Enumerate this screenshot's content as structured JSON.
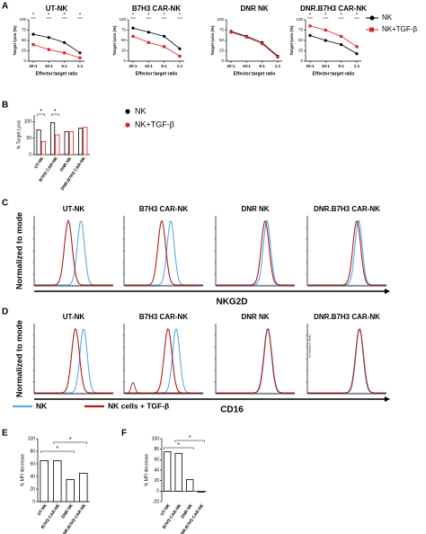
{
  "panel_labels": [
    "A",
    "B",
    "C",
    "D",
    "E",
    "F"
  ],
  "chart_data": [
    {
      "type": "line",
      "title": "UT-NK",
      "x_label": "Effector:target ratio",
      "y_label": "Target lysis (%)",
      "categories": [
        "20:1",
        "10:1",
        "5:1",
        "1:1"
      ],
      "series": [
        {
          "name": "NK",
          "color": "#000000",
          "marker": "circle",
          "values": [
            65,
            57,
            45,
            20
          ]
        },
        {
          "name": "NK+TGF-β",
          "color": "#dd2222",
          "marker": "square",
          "values": [
            40,
            28,
            20,
            8
          ]
        }
      ],
      "ylim": [
        0,
        100
      ],
      "yticks": [
        0,
        25,
        50,
        75,
        100
      ],
      "annotations": [
        "*",
        "*",
        "*",
        "*"
      ]
    },
    {
      "type": "line",
      "title": "B7H3 CAR-NK",
      "x_label": "Effector:target ratio",
      "y_label": "Target lysis (%)",
      "categories": [
        "20:1",
        "10:1",
        "5:1",
        "1:1"
      ],
      "series": [
        {
          "color": "#000000",
          "marker": "circle",
          "values": [
            80,
            70,
            60,
            30
          ]
        },
        {
          "color": "#dd2222",
          "marker": "square",
          "values": [
            60,
            45,
            35,
            12
          ]
        }
      ],
      "ylim": [
        0,
        100
      ],
      "yticks": [
        0,
        25,
        50,
        75,
        100
      ],
      "annotations": [
        "*",
        "*",
        "*",
        "*"
      ]
    },
    {
      "type": "line",
      "title": "DNR NK",
      "x_label": "Effector:target ratio",
      "y_label": "Target lysis (%)",
      "categories": [
        "20:1",
        "10:1",
        "5:1",
        "1:1"
      ],
      "series": [
        {
          "color": "#000000",
          "marker": "circle",
          "values": [
            72,
            60,
            45,
            12
          ]
        },
        {
          "color": "#dd2222",
          "marker": "square",
          "values": [
            70,
            58,
            42,
            10
          ]
        }
      ],
      "ylim": [
        0,
        100
      ],
      "yticks": [
        0,
        25,
        50,
        75,
        100
      ]
    },
    {
      "type": "line",
      "title": "DNR.B7H3 CAR-NK",
      "x_label": "Effector:target ratio",
      "y_label": "Target lysis (%)",
      "categories": [
        "20:1",
        "10:1",
        "5:1",
        "1:1"
      ],
      "series": [
        {
          "color": "#000000",
          "marker": "circle",
          "values": [
            62,
            50,
            40,
            18
          ]
        },
        {
          "color": "#dd2222",
          "marker": "square",
          "values": [
            85,
            75,
            60,
            35
          ]
        }
      ],
      "ylim": [
        0,
        100
      ],
      "yticks": [
        0,
        25,
        50,
        75,
        100
      ],
      "annotations": [
        "*",
        "*",
        "*",
        "*"
      ]
    },
    {
      "type": "bar",
      "y_label": "% Target Lysis",
      "categories": [
        "UT-NK",
        "B7H3 CAR-NK",
        "DNR NK",
        "DNR.B7H3 CAR-NK"
      ],
      "series": [
        {
          "name": "NK",
          "color": "#000000",
          "values": [
            75,
            97,
            70,
            80
          ]
        },
        {
          "name": "NK+TGF-β",
          "color": "#dd2222",
          "values": [
            40,
            60,
            70,
            83
          ]
        }
      ],
      "ylim": [
        0,
        120
      ],
      "yticks": [
        0,
        50,
        100
      ],
      "annotations": [
        "*",
        "*"
      ]
    },
    {
      "type": "bar",
      "y_label": "% MFI decrease",
      "categories": [
        "UT-NK",
        "B7H3 CAR-NK",
        "DNR NK",
        "DNR.B7H3 CAR-NK"
      ],
      "values": [
        65,
        65,
        35,
        45
      ],
      "color": "#000000",
      "ylim": [
        0,
        100
      ],
      "yticks": [
        0,
        20,
        40,
        60,
        80,
        100
      ],
      "annotations": [
        "*",
        "*"
      ]
    },
    {
      "type": "bar",
      "y_label": "% MFI decrease",
      "categories": [
        "UT-NK",
        "B7H3 CAR-NK",
        "DNR NK",
        "DNR.B7H3 CAR-NK"
      ],
      "values": [
        75,
        72,
        22,
        -2
      ],
      "color": "#000000",
      "ylim": [
        -20,
        100
      ],
      "yticks": [
        -20,
        0,
        20,
        40,
        60,
        80,
        100
      ],
      "annotations": [
        "*",
        "*"
      ]
    }
  ],
  "flow": {
    "y_label": "Normalized to mode",
    "C": {
      "titles": [
        "UT-NK",
        "B7H3 CAR-NK",
        "DNR NK",
        "DNR.B7H3 CAR-NK"
      ],
      "x_label": "NKG2D"
    },
    "D": {
      "titles": [
        "UT-NK",
        "B7H3 CAR-NK",
        "DNR NK",
        "DNR.B7H3 CAR-NK"
      ],
      "x_label": "CD16",
      "note": "Normalized To Mode",
      "legend": [
        {
          "name": "NK",
          "color": "#5aaae6"
        },
        {
          "name": "NK cells + TGF-β",
          "color": "#b01c1c"
        }
      ]
    }
  }
}
